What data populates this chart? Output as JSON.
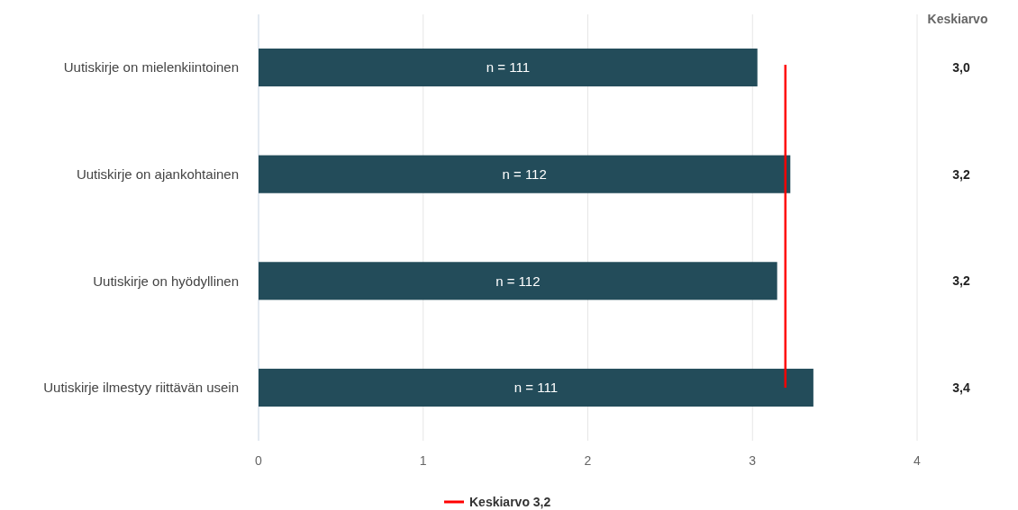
{
  "chart_data": {
    "type": "bar",
    "orientation": "horizontal",
    "categories": [
      "Uutiskirje on mielenkiintoinen",
      "Uutiskirje on ajankohtainen",
      "Uutiskirje on hyödyllinen",
      "Uutiskirje ilmestyy riittävän usein"
    ],
    "values": [
      3.03,
      3.23,
      3.15,
      3.37
    ],
    "color": "#234c5a",
    "value_labels": [
      "3,0",
      "3,2",
      "3,2",
      "3,4"
    ],
    "xlim": [
      0,
      4
    ],
    "xticks": [
      0,
      1,
      2,
      3,
      4
    ],
    "grid": "x",
    "ref_lines": [
      {
        "axis": "x",
        "value": 3.2,
        "label": "Keskiarvo 3,2",
        "color": "#ff0000"
      }
    ],
    "legend": "bottom",
    "annotations": [
      "Keskiarvo",
      "n = 111",
      "n = 112",
      "n = 112",
      "n = 111"
    ]
  }
}
